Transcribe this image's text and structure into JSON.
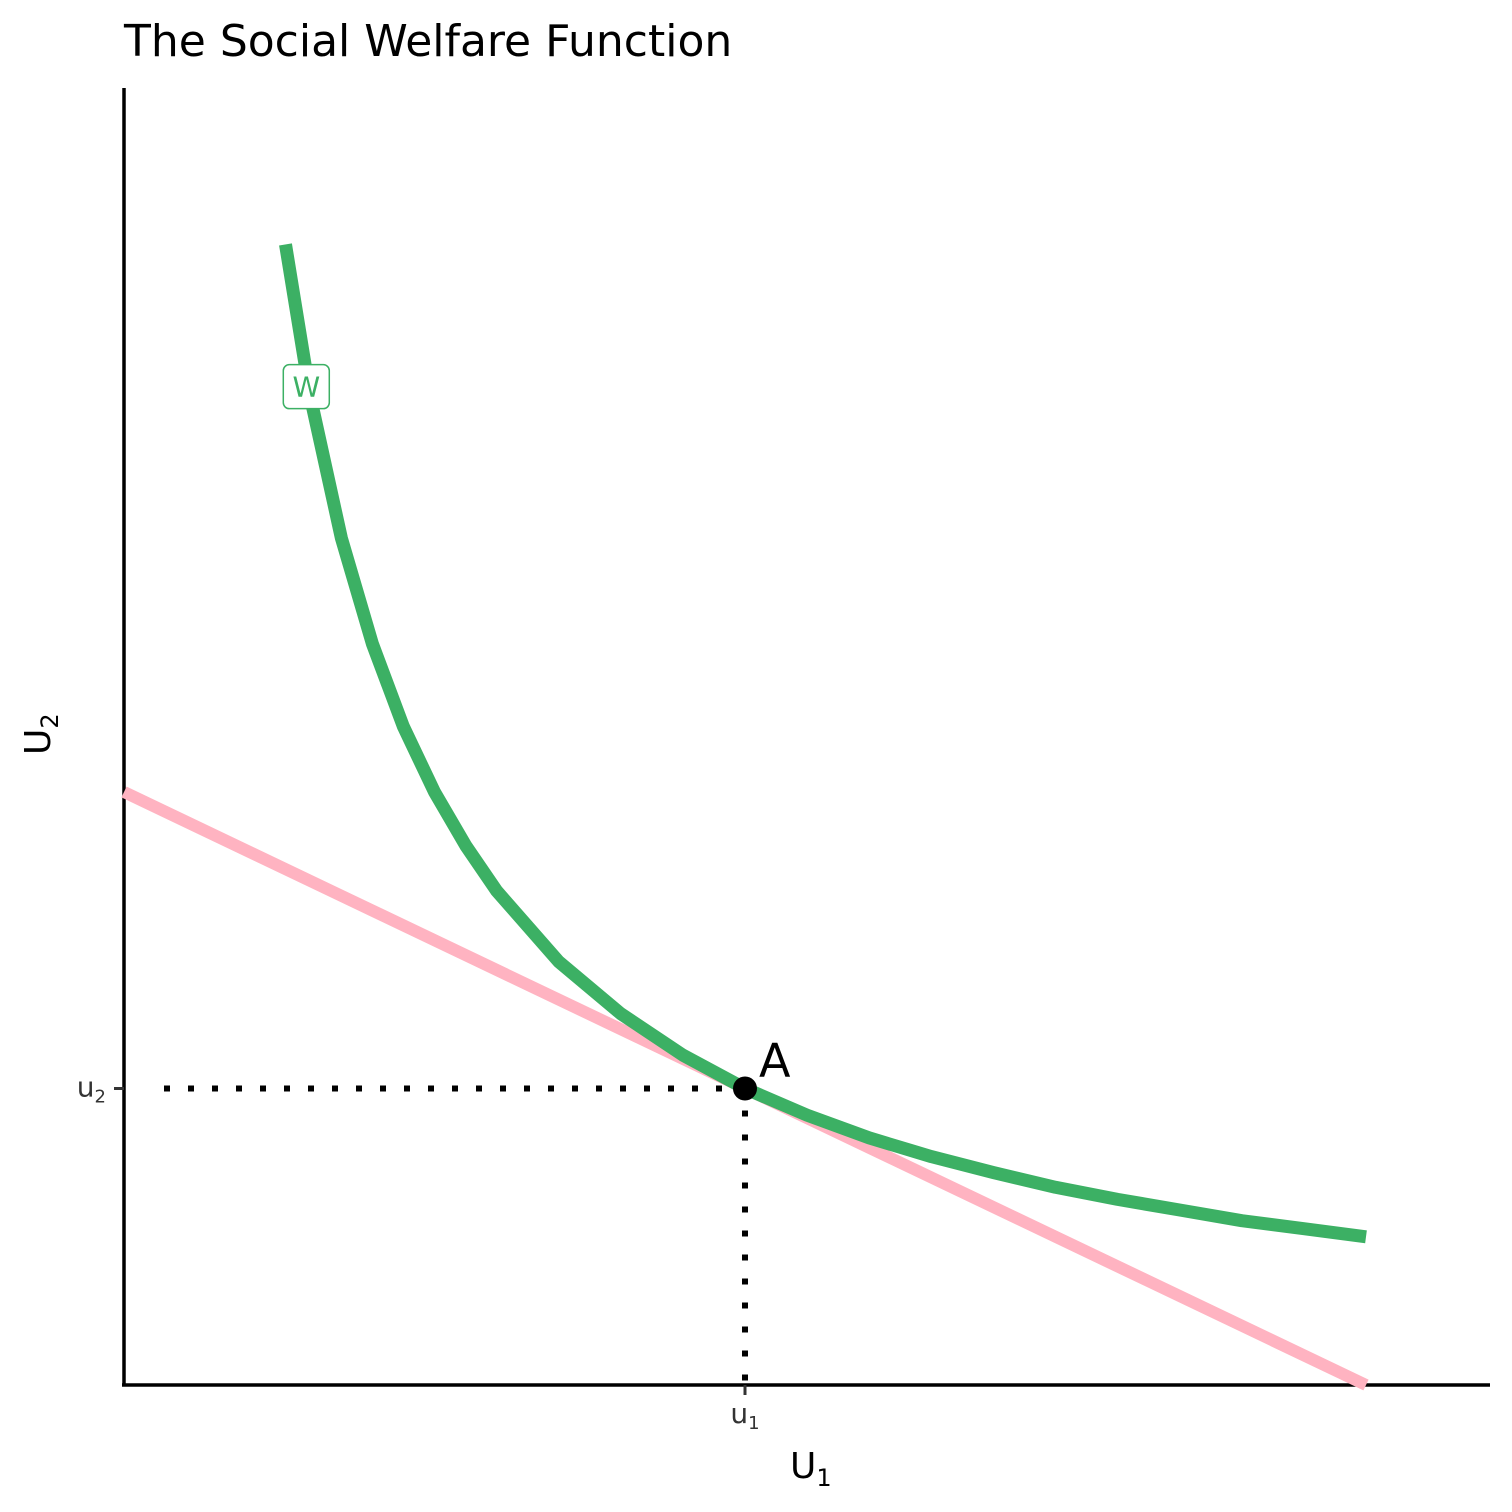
{
  "chart_data": {
    "type": "line",
    "title": "The Social Welfare Function",
    "xlabel": {
      "main": "U",
      "sub": "1"
    },
    "ylabel": {
      "main": "U",
      "sub": "2"
    },
    "xlim": [
      0,
      10
    ],
    "ylim": [
      0,
      10
    ],
    "grid": false,
    "legend": "none",
    "x_ticks": [
      {
        "value": 5,
        "main": "u",
        "sub": "1"
      }
    ],
    "y_ticks": [
      {
        "value": 2.22,
        "main": "u",
        "sub": "2"
      }
    ],
    "series": [
      {
        "name": "W",
        "kind": "curve",
        "color": "#3cb064",
        "x": [
          1.3,
          1.5,
          1.75,
          2.0,
          2.25,
          2.5,
          2.75,
          3.0,
          3.5,
          4.0,
          4.5,
          5.0,
          5.5,
          6.0,
          6.5,
          7.0,
          7.5,
          8.0,
          8.5,
          9.0,
          9.5,
          10.0
        ],
        "y": [
          8.54,
          7.4,
          6.34,
          5.55,
          4.93,
          4.44,
          4.04,
          3.7,
          3.17,
          2.78,
          2.47,
          2.22,
          2.02,
          1.85,
          1.71,
          1.59,
          1.48,
          1.39,
          1.31,
          1.23,
          1.17,
          1.11
        ]
      },
      {
        "name": "",
        "kind": "line",
        "color": "#ffb3c1",
        "x": [
          0,
          10
        ],
        "y": [
          4.44,
          0
        ]
      }
    ],
    "point": {
      "label": "A",
      "x": 5,
      "y": 2.22,
      "color": "#000000"
    },
    "curve_label": {
      "text": "W",
      "x": 1.5,
      "y": 7.4,
      "color": "#3cb064"
    },
    "guides": {
      "style": "dotted",
      "color": "#000000"
    }
  }
}
